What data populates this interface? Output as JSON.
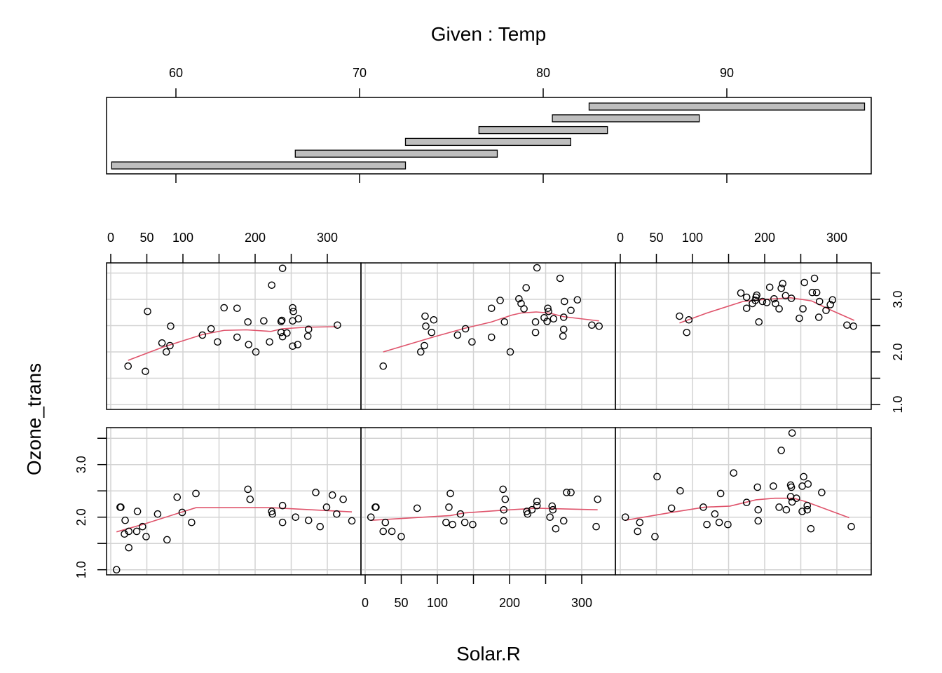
{
  "chart_data": {
    "type": "scatter",
    "plot_kind": "coplot",
    "given": {
      "title": "Given : Temp",
      "axis_ticks": [
        60,
        70,
        80,
        90
      ],
      "range": [
        56,
        97.8
      ],
      "intervals": [
        [
          56.5,
          72.5
        ],
        [
          66.5,
          77.5
        ],
        [
          72.5,
          81.5
        ],
        [
          76.5,
          83.5
        ],
        [
          80.5,
          88.5
        ],
        [
          82.5,
          97.5
        ]
      ]
    },
    "xlabel": "Solar.R",
    "ylabel": "Ozone_trans",
    "x_ticks": [
      0,
      50,
      100,
      150,
      200,
      250,
      300
    ],
    "x_tick_labels": [
      "0",
      "50",
      "100",
      "200",
      "300"
    ],
    "x_tick_label_values": [
      0,
      50,
      100,
      200,
      300
    ],
    "y_ticks": [
      1.0,
      1.5,
      2.0,
      2.5,
      3.0,
      3.5
    ],
    "y_tick_labels": [
      "1.0",
      "2.0",
      "3.0"
    ],
    "y_tick_label_values": [
      1.0,
      2.0,
      3.0
    ],
    "xlim": [
      -6,
      347
    ],
    "grid": true,
    "colors": {
      "points": "#000000",
      "smooth": "#DF536B",
      "grid": "#D3D3D3",
      "bar": "#BEBEBE"
    },
    "panels": [
      {
        "given_interval": 1,
        "points": [
          [
            8,
            1.0
          ],
          [
            13,
            2.19
          ],
          [
            14,
            2.19
          ],
          [
            20,
            1.94
          ],
          [
            19,
            1.68
          ],
          [
            25,
            1.73
          ],
          [
            25,
            1.42
          ],
          [
            37,
            2.11
          ],
          [
            36,
            1.73
          ],
          [
            44,
            1.82
          ],
          [
            49,
            1.63
          ],
          [
            65,
            2.06
          ],
          [
            78,
            1.57
          ],
          [
            92,
            2.38
          ],
          [
            99,
            2.09
          ],
          [
            112,
            1.9
          ],
          [
            118,
            2.45
          ],
          [
            190,
            2.53
          ],
          [
            193,
            2.34
          ],
          [
            223,
            2.11
          ],
          [
            224,
            2.06
          ],
          [
            238,
            2.22
          ],
          [
            238,
            1.9
          ],
          [
            256,
            2.0
          ],
          [
            274,
            1.94
          ],
          [
            284,
            2.47
          ],
          [
            290,
            1.82
          ],
          [
            299,
            2.19
          ],
          [
            307,
            2.42
          ],
          [
            313,
            2.06
          ],
          [
            322,
            2.34
          ],
          [
            334,
            1.93
          ]
        ],
        "smooth": [
          [
            8,
            1.72
          ],
          [
            44,
            1.86
          ],
          [
            99,
            2.1
          ],
          [
            118,
            2.18
          ],
          [
            223,
            2.18
          ],
          [
            334,
            2.1
          ]
        ]
      },
      {
        "given_interval": 2,
        "points": [
          [
            8,
            2.0
          ],
          [
            14,
            2.19
          ],
          [
            15,
            2.19
          ],
          [
            28,
            1.9
          ],
          [
            25,
            1.73
          ],
          [
            37,
            1.73
          ],
          [
            50,
            1.63
          ],
          [
            72,
            2.17
          ],
          [
            116,
            2.19
          ],
          [
            118,
            2.45
          ],
          [
            112,
            1.9
          ],
          [
            121,
            1.86
          ],
          [
            132,
            2.06
          ],
          [
            138,
            1.9
          ],
          [
            149,
            1.86
          ],
          [
            191,
            2.53
          ],
          [
            194,
            2.34
          ],
          [
            192,
            2.14
          ],
          [
            192,
            1.93
          ],
          [
            224,
            2.11
          ],
          [
            225,
            2.06
          ],
          [
            231,
            2.14
          ],
          [
            238,
            2.3
          ],
          [
            238,
            2.22
          ],
          [
            259,
            2.21
          ],
          [
            260,
            2.14
          ],
          [
            256,
            2.0
          ],
          [
            264,
            1.78
          ],
          [
            275,
            1.93
          ],
          [
            279,
            2.47
          ],
          [
            285,
            2.47
          ],
          [
            322,
            2.34
          ],
          [
            320,
            1.82
          ]
        ],
        "smooth": [
          [
            8,
            1.94
          ],
          [
            118,
            2.03
          ],
          [
            137,
            2.08
          ],
          [
            189,
            2.13
          ],
          [
            237,
            2.17
          ],
          [
            322,
            2.14
          ]
        ]
      },
      {
        "given_interval": 3,
        "points": [
          [
            7,
            2.0
          ],
          [
            27,
            1.9
          ],
          [
            24,
            1.73
          ],
          [
            48,
            1.63
          ],
          [
            51,
            2.77
          ],
          [
            71,
            2.17
          ],
          [
            83,
            2.5
          ],
          [
            115,
            2.19
          ],
          [
            120,
            1.86
          ],
          [
            131,
            2.06
          ],
          [
            137,
            1.9
          ],
          [
            139,
            2.45
          ],
          [
            149,
            1.86
          ],
          [
            157,
            2.84
          ],
          [
            175,
            2.28
          ],
          [
            190,
            2.57
          ],
          [
            191,
            2.14
          ],
          [
            191,
            1.93
          ],
          [
            212,
            2.59
          ],
          [
            223,
            3.27
          ],
          [
            238,
            3.6
          ],
          [
            236,
            2.61
          ],
          [
            237,
            2.57
          ],
          [
            252,
            2.59
          ],
          [
            254,
            2.77
          ],
          [
            260,
            2.63
          ],
          [
            236,
            2.39
          ],
          [
            244,
            2.36
          ],
          [
            238,
            2.29
          ],
          [
            220,
            2.19
          ],
          [
            230,
            2.14
          ],
          [
            259,
            2.22
          ],
          [
            259,
            2.14
          ],
          [
            252,
            2.11
          ],
          [
            264,
            1.78
          ],
          [
            279,
            2.47
          ],
          [
            320,
            1.82
          ]
        ],
        "smooth": [
          [
            7,
            1.94
          ],
          [
            71,
            2.09
          ],
          [
            117,
            2.19
          ],
          [
            152,
            2.21
          ],
          [
            188,
            2.33
          ],
          [
            214,
            2.36
          ],
          [
            240,
            2.36
          ],
          [
            256,
            2.3
          ],
          [
            317,
            1.99
          ]
        ]
      },
      {
        "given_interval": 4,
        "points": [
          [
            238,
            3.59
          ],
          [
            223,
            3.27
          ],
          [
            51,
            2.77
          ],
          [
            157,
            2.84
          ],
          [
            175,
            2.83
          ],
          [
            252,
            2.84
          ],
          [
            253,
            2.77
          ],
          [
            260,
            2.63
          ],
          [
            237,
            2.6
          ],
          [
            236,
            2.58
          ],
          [
            252,
            2.59
          ],
          [
            190,
            2.57
          ],
          [
            212,
            2.59
          ],
          [
            83,
            2.49
          ],
          [
            139,
            2.44
          ],
          [
            314,
            2.51
          ],
          [
            274,
            2.43
          ],
          [
            127,
            2.32
          ],
          [
            236,
            2.37
          ],
          [
            244,
            2.36
          ],
          [
            238,
            2.29
          ],
          [
            273,
            2.3
          ],
          [
            175,
            2.28
          ],
          [
            148,
            2.19
          ],
          [
            220,
            2.19
          ],
          [
            71,
            2.17
          ],
          [
            82,
            2.12
          ],
          [
            191,
            2.14
          ],
          [
            259,
            2.14
          ],
          [
            252,
            2.11
          ],
          [
            77,
            2.0
          ],
          [
            201,
            2.0
          ],
          [
            24,
            1.73
          ],
          [
            48,
            1.63
          ]
        ],
        "smooth": [
          [
            24,
            1.84
          ],
          [
            72,
            2.09
          ],
          [
            127,
            2.33
          ],
          [
            157,
            2.41
          ],
          [
            188,
            2.42
          ],
          [
            222,
            2.39
          ],
          [
            237,
            2.44
          ],
          [
            272,
            2.47
          ],
          [
            313,
            2.48
          ]
        ]
      },
      {
        "given_interval": 5,
        "points": [
          [
            238,
            3.6
          ],
          [
            270,
            3.4
          ],
          [
            223,
            3.22
          ],
          [
            187,
            2.98
          ],
          [
            213,
            3.01
          ],
          [
            216,
            2.92
          ],
          [
            220,
            2.82
          ],
          [
            175,
            2.83
          ],
          [
            276,
            2.96
          ],
          [
            294,
            2.99
          ],
          [
            285,
            2.79
          ],
          [
            253,
            2.83
          ],
          [
            254,
            2.77
          ],
          [
            248,
            2.65
          ],
          [
            261,
            2.63
          ],
          [
            252,
            2.58
          ],
          [
            275,
            2.66
          ],
          [
            236,
            2.57
          ],
          [
            193,
            2.57
          ],
          [
            83,
            2.68
          ],
          [
            95,
            2.61
          ],
          [
            84,
            2.49
          ],
          [
            314,
            2.51
          ],
          [
            324,
            2.49
          ],
          [
            139,
            2.44
          ],
          [
            92,
            2.37
          ],
          [
            236,
            2.37
          ],
          [
            275,
            2.43
          ],
          [
            274,
            2.3
          ],
          [
            128,
            2.32
          ],
          [
            175,
            2.28
          ],
          [
            148,
            2.19
          ],
          [
            82,
            2.12
          ],
          [
            77,
            2.0
          ],
          [
            201,
            2.0
          ],
          [
            25,
            1.73
          ]
        ],
        "smooth": [
          [
            25,
            2.0
          ],
          [
            96,
            2.29
          ],
          [
            138,
            2.45
          ],
          [
            175,
            2.57
          ],
          [
            203,
            2.7
          ],
          [
            216,
            2.74
          ],
          [
            237,
            2.76
          ],
          [
            255,
            2.74
          ],
          [
            275,
            2.67
          ],
          [
            324,
            2.59
          ]
        ]
      },
      {
        "given_interval": 6,
        "points": [
          [
            82,
            2.68
          ],
          [
            95,
            2.61
          ],
          [
            92,
            2.37
          ],
          [
            167,
            3.12
          ],
          [
            175,
            3.04
          ],
          [
            189,
            3.08
          ],
          [
            188,
            3.04
          ],
          [
            187,
            2.98
          ],
          [
            183,
            2.92
          ],
          [
            197,
            2.96
          ],
          [
            203,
            2.94
          ],
          [
            175,
            2.83
          ],
          [
            192,
            2.57
          ],
          [
            207,
            3.23
          ],
          [
            225,
            3.3
          ],
          [
            223,
            3.21
          ],
          [
            213,
            3.01
          ],
          [
            215,
            2.92
          ],
          [
            220,
            2.82
          ],
          [
            229,
            3.07
          ],
          [
            237,
            3.02
          ],
          [
            255,
            3.32
          ],
          [
            269,
            3.4
          ],
          [
            266,
            3.13
          ],
          [
            272,
            3.13
          ],
          [
            276,
            2.96
          ],
          [
            294,
            2.99
          ],
          [
            291,
            2.9
          ],
          [
            285,
            2.79
          ],
          [
            253,
            2.82
          ],
          [
            248,
            2.64
          ],
          [
            275,
            2.66
          ],
          [
            314,
            2.51
          ],
          [
            323,
            2.49
          ]
        ],
        "smooth": [
          [
            82,
            2.55
          ],
          [
            120,
            2.74
          ],
          [
            170,
            2.96
          ],
          [
            201,
            3.0
          ],
          [
            236,
            3.03
          ],
          [
            265,
            2.97
          ],
          [
            291,
            2.8
          ],
          [
            324,
            2.6
          ]
        ]
      }
    ]
  }
}
